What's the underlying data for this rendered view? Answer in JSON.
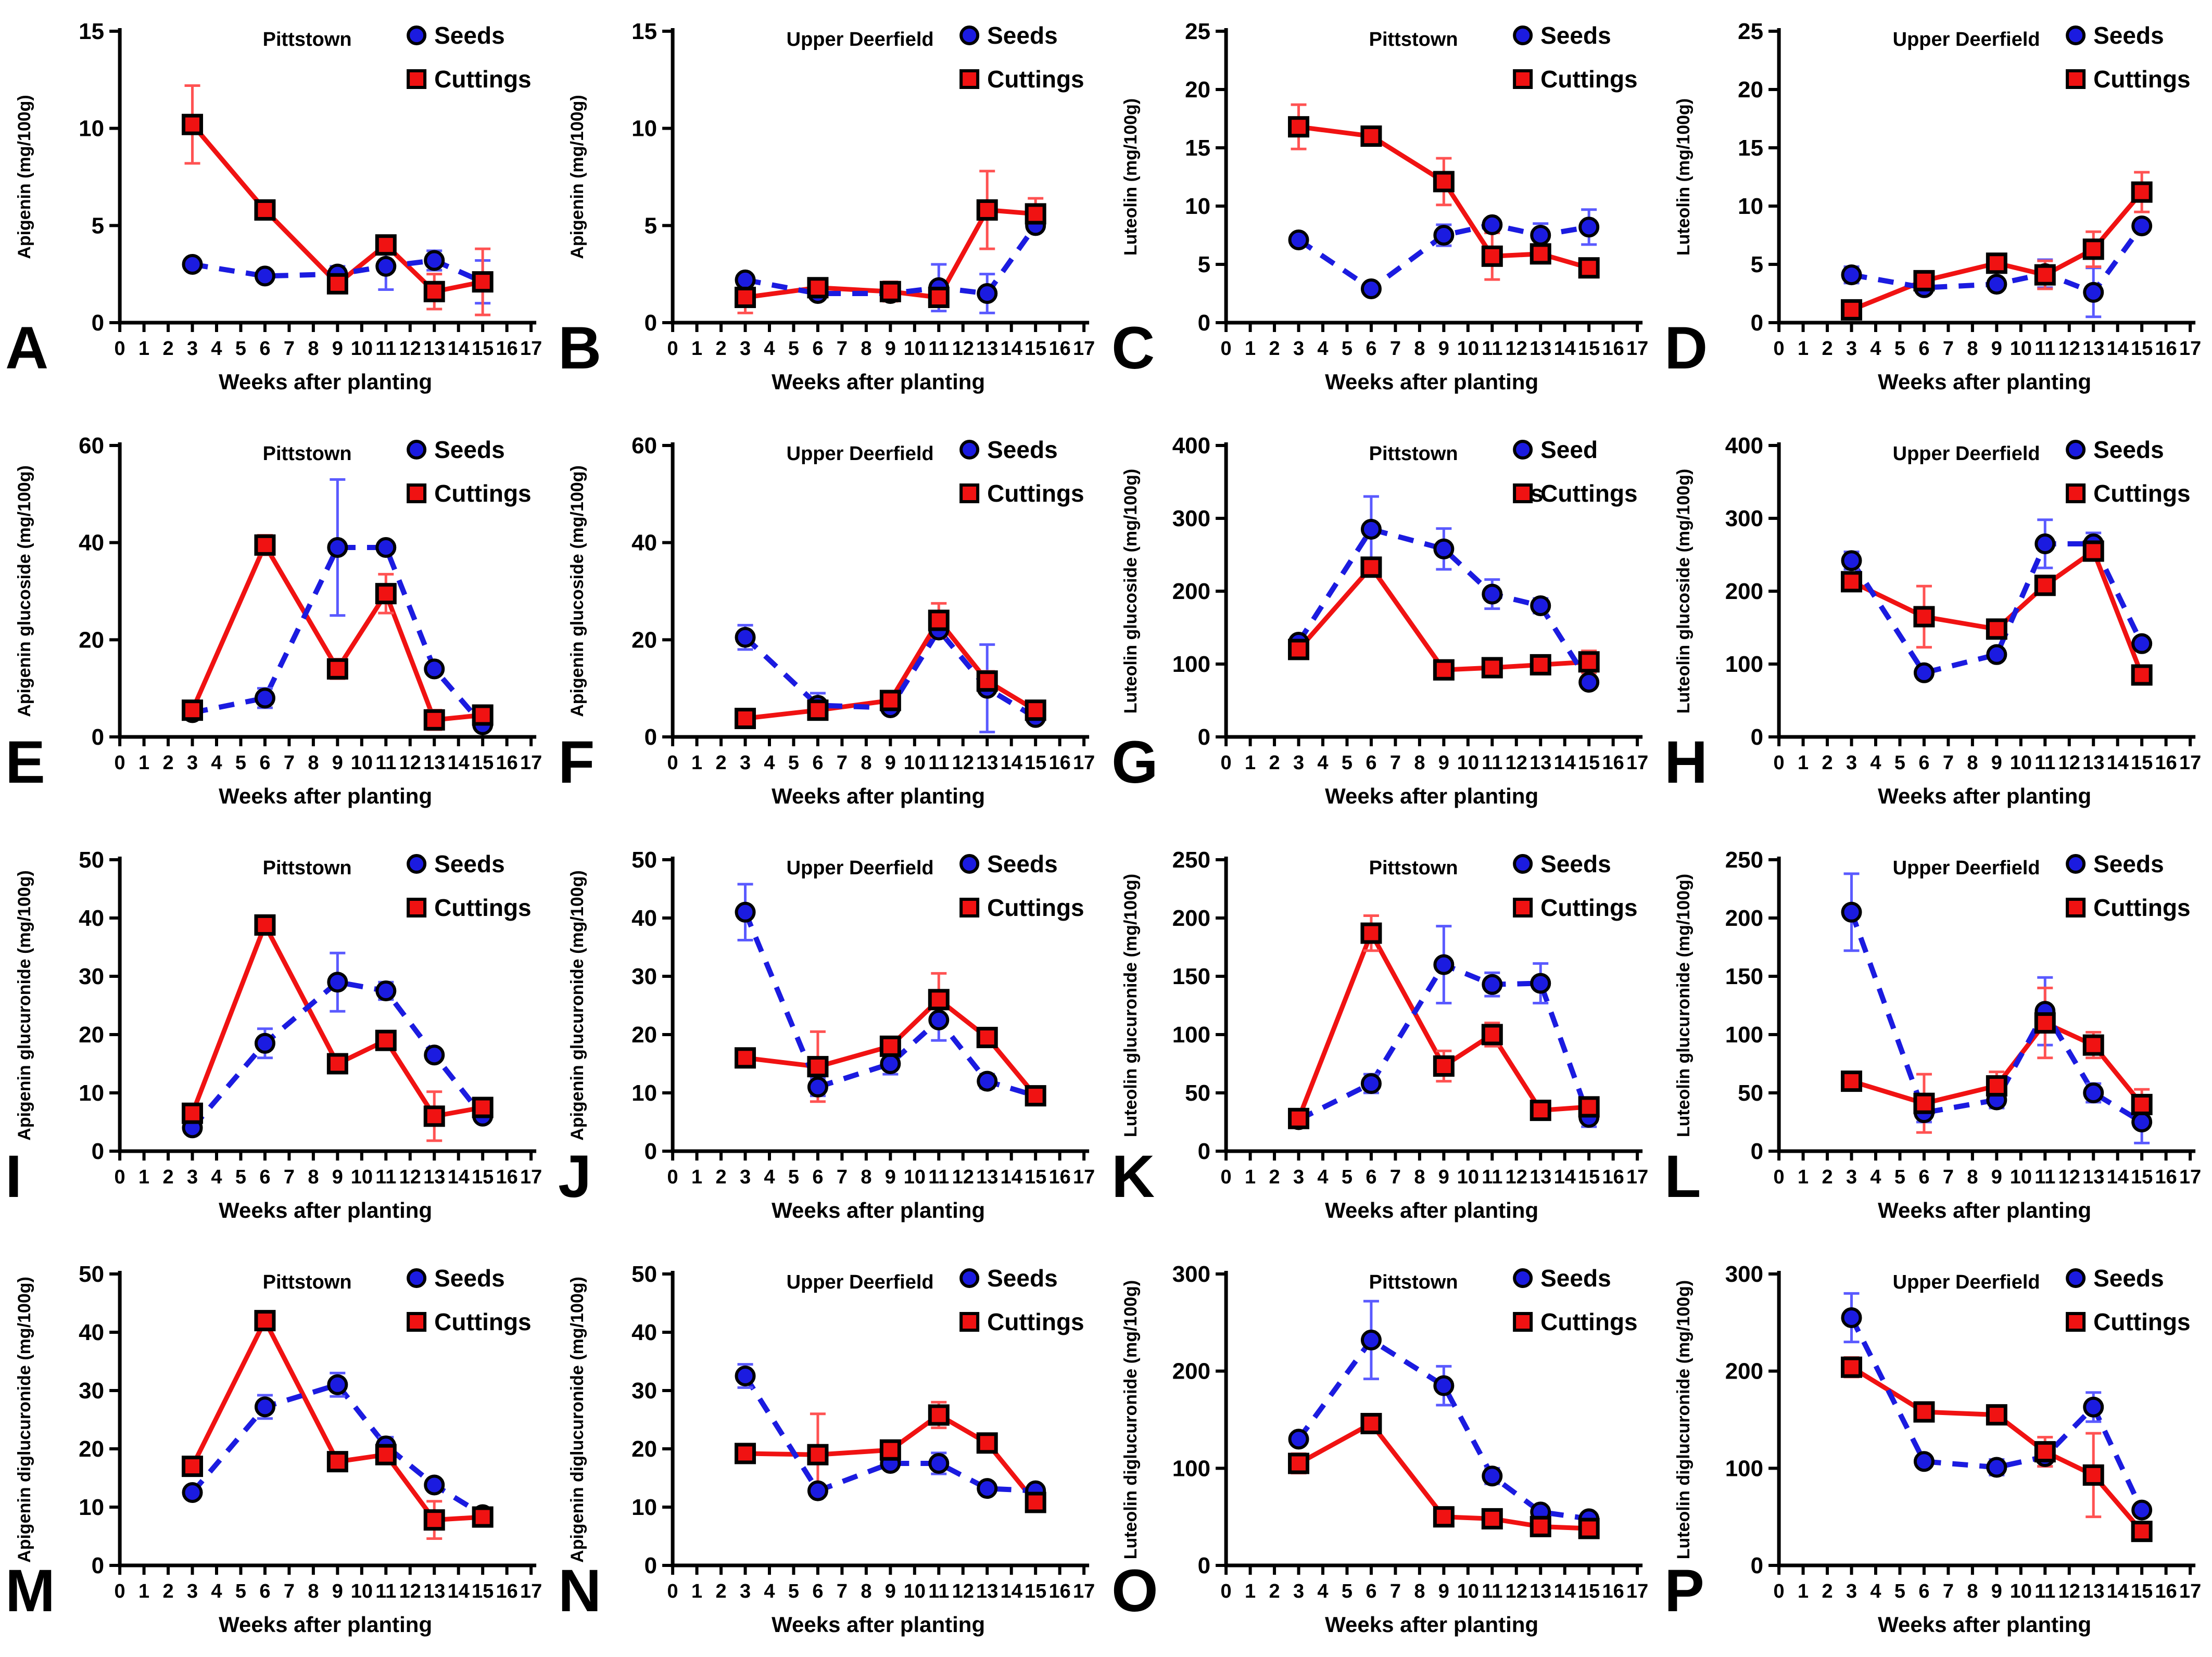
{
  "figure": {
    "xlabel": "Weeks after planting",
    "xlim": [
      0,
      17
    ],
    "x_tick_step": 1,
    "sample_weeks": [
      3,
      6,
      9,
      11,
      13,
      15
    ],
    "legend": {
      "seeds_label": "Seeds",
      "cuttings_label": "Cuttings"
    },
    "colors": {
      "seeds": "#1b1be0",
      "cuttings": "#f01212",
      "seeds_error": "#5a5aff",
      "cuttings_error": "#ff5252",
      "marker_outline": "#000000",
      "axis": "#000000",
      "background": "#ffffff"
    }
  },
  "chart_data": [
    {
      "panel": "A",
      "type": "line",
      "title": "Pittstown",
      "ylabel": "Apigenin (mg/100g)",
      "ylim": [
        0,
        15
      ],
      "yticks": [
        0,
        5,
        10,
        15
      ],
      "x": [
        3,
        6,
        9,
        11,
        13,
        15
      ],
      "series": [
        {
          "name": "Seeds",
          "values": [
            3.0,
            2.4,
            2.5,
            2.9,
            3.2,
            2.1
          ],
          "errors": [
            0.2,
            0.15,
            0.4,
            1.2,
            0.5,
            1.1
          ]
        },
        {
          "name": "Cuttings",
          "values": [
            10.2,
            5.8,
            2.0,
            4.0,
            1.6,
            2.1
          ],
          "errors": [
            2.0,
            0.2,
            0.3,
            0.3,
            0.9,
            1.7
          ]
        }
      ],
      "legend_seeds_lines": [
        "Seeds"
      ]
    },
    {
      "panel": "B",
      "type": "line",
      "title": "Upper Deerfield",
      "ylabel": "Apigenin (mg/100g)",
      "ylim": [
        0,
        15
      ],
      "yticks": [
        0,
        5,
        10,
        15
      ],
      "x": [
        3,
        6,
        9,
        11,
        13,
        15
      ],
      "series": [
        {
          "name": "Seeds",
          "values": [
            2.2,
            1.5,
            1.5,
            1.8,
            1.5,
            5.0
          ],
          "errors": [
            0.2,
            0.15,
            0.2,
            1.2,
            1.0,
            0.3
          ]
        },
        {
          "name": "Cuttings",
          "values": [
            1.3,
            1.8,
            1.6,
            1.3,
            5.8,
            5.6
          ],
          "errors": [
            0.8,
            0.2,
            0.5,
            0.2,
            2.0,
            0.8
          ]
        }
      ],
      "legend_seeds_lines": [
        "Seeds"
      ]
    },
    {
      "panel": "C",
      "type": "line",
      "title": "Pittstown",
      "ylabel": "Luteolin (mg/100g)",
      "ylim": [
        0,
        25
      ],
      "yticks": [
        0,
        5,
        10,
        15,
        20,
        25
      ],
      "x": [
        3,
        6,
        9,
        11,
        13,
        15
      ],
      "series": [
        {
          "name": "Seeds",
          "values": [
            7.1,
            2.9,
            7.5,
            8.4,
            7.5,
            8.2
          ],
          "errors": [
            0.3,
            0.3,
            0.9,
            0.3,
            1.0,
            1.5
          ]
        },
        {
          "name": "Cuttings",
          "values": [
            16.8,
            16.0,
            12.1,
            5.7,
            5.9,
            4.7
          ],
          "errors": [
            1.9,
            0.4,
            2.0,
            2.0,
            0.5,
            0.4
          ]
        }
      ],
      "legend_seeds_lines": [
        "Seeds"
      ]
    },
    {
      "panel": "D",
      "type": "line",
      "title": "Upper Deerfield",
      "ylabel": "Luteolin (mg/100g)",
      "ylim": [
        0,
        25
      ],
      "yticks": [
        0,
        5,
        10,
        15,
        20,
        25
      ],
      "x": [
        3,
        6,
        9,
        11,
        13,
        15
      ],
      "series": [
        {
          "name": "Seeds",
          "values": [
            4.1,
            3.0,
            3.3,
            4.2,
            2.6,
            8.3
          ],
          "errors": [
            0.7,
            0.3,
            0.3,
            1.2,
            2.1,
            0.5
          ]
        },
        {
          "name": "Cuttings",
          "values": [
            1.1,
            3.6,
            5.1,
            4.1,
            6.3,
            11.2
          ],
          "errors": [
            0.3,
            0.3,
            0.7,
            1.2,
            1.5,
            1.7
          ]
        }
      ],
      "legend_seeds_lines": [
        "Seeds"
      ]
    },
    {
      "panel": "E",
      "type": "line",
      "title": "Pittstown",
      "ylabel": "Apigenin glucoside (mg/100g)",
      "ylim": [
        0,
        60
      ],
      "yticks": [
        0,
        20,
        40,
        60
      ],
      "x": [
        3,
        6,
        9,
        11,
        13,
        15
      ],
      "series": [
        {
          "name": "Seeds",
          "values": [
            5.0,
            8.0,
            39.0,
            39.0,
            14.0,
            2.5
          ],
          "errors": [
            1.0,
            2.0,
            14.0,
            1.0,
            1.0,
            0.5
          ]
        },
        {
          "name": "Cuttings",
          "values": [
            5.5,
            39.5,
            14.0,
            29.5,
            3.5,
            4.5
          ],
          "errors": [
            1.5,
            2.0,
            2.0,
            4.0,
            2.0,
            0.5
          ]
        }
      ],
      "legend_seeds_lines": [
        "Seeds"
      ]
    },
    {
      "panel": "F",
      "type": "line",
      "title": "Upper Deerfield",
      "ylabel": "Apigenin glucoside (mg/100g)",
      "ylim": [
        0,
        60
      ],
      "yticks": [
        0,
        20,
        40,
        60
      ],
      "x": [
        3,
        6,
        9,
        11,
        13,
        15
      ],
      "series": [
        {
          "name": "Seeds",
          "values": [
            20.5,
            6.5,
            6.0,
            22.0,
            10.0,
            4.0
          ],
          "errors": [
            2.5,
            2.5,
            0.5,
            1.0,
            9.0,
            0.5
          ]
        },
        {
          "name": "Cuttings",
          "values": [
            3.8,
            5.5,
            7.5,
            24.0,
            11.5,
            5.5
          ],
          "errors": [
            0.5,
            0.5,
            0.5,
            3.5,
            2.0,
            0.5
          ]
        }
      ],
      "legend_seeds_lines": [
        "Seeds"
      ]
    },
    {
      "panel": "G",
      "type": "line",
      "title": "Pittstown",
      "ylabel": "Luteolin glucoside (mg/100g)",
      "ylim": [
        0,
        400
      ],
      "yticks": [
        0,
        100,
        200,
        300,
        400
      ],
      "x": [
        3,
        6,
        9,
        11,
        13,
        15
      ],
      "series": [
        {
          "name": "Seeds",
          "values": [
            130,
            285,
            258,
            196,
            180,
            75
          ],
          "errors": [
            8,
            45,
            28,
            20,
            10,
            5
          ]
        },
        {
          "name": "Cuttings",
          "values": [
            120,
            233,
            92,
            95,
            99,
            103
          ],
          "errors": [
            5,
            5,
            4,
            4,
            4,
            15
          ]
        }
      ],
      "legend_seeds_lines": [
        "Seed",
        "s"
      ]
    },
    {
      "panel": "H",
      "type": "line",
      "title": "Upper Deerfield",
      "ylabel": "Luteolin glucoside (mg/100g)",
      "ylim": [
        0,
        400
      ],
      "yticks": [
        0,
        100,
        200,
        300,
        400
      ],
      "x": [
        3,
        6,
        9,
        11,
        13,
        15
      ],
      "series": [
        {
          "name": "Seeds",
          "values": [
            242,
            88,
            113,
            265,
            265,
            128
          ],
          "errors": [
            12,
            4,
            5,
            33,
            15,
            5
          ]
        },
        {
          "name": "Cuttings",
          "values": [
            213,
            165,
            148,
            208,
            255,
            85
          ],
          "errors": [
            8,
            42,
            6,
            6,
            5,
            4
          ]
        }
      ],
      "legend_seeds_lines": [
        "Seeds"
      ]
    },
    {
      "panel": "I",
      "type": "line",
      "title": "Pittstown",
      "ylabel": "Apigenin glucuronide (mg/100g)",
      "ylim": [
        0,
        50
      ],
      "yticks": [
        0,
        10,
        20,
        30,
        40,
        50
      ],
      "x": [
        3,
        6,
        9,
        11,
        13,
        15
      ],
      "series": [
        {
          "name": "Seeds",
          "values": [
            4.0,
            18.5,
            29.0,
            27.5,
            16.5,
            6.0
          ],
          "errors": [
            1.0,
            2.5,
            5.0,
            1.5,
            0.8,
            0.5
          ]
        },
        {
          "name": "Cuttings",
          "values": [
            6.5,
            38.8,
            15.0,
            19.0,
            6.0,
            7.5
          ],
          "errors": [
            0.8,
            0.8,
            1.0,
            1.0,
            4.2,
            0.5
          ]
        }
      ],
      "legend_seeds_lines": [
        "Seeds"
      ]
    },
    {
      "panel": "J",
      "type": "line",
      "title": "Upper Deerfield",
      "ylabel": "Apigenin glucuronide (mg/100g)",
      "ylim": [
        0,
        50
      ],
      "yticks": [
        0,
        10,
        20,
        30,
        40,
        50
      ],
      "x": [
        3,
        6,
        9,
        11,
        13,
        15
      ],
      "series": [
        {
          "name": "Seeds",
          "values": [
            41.0,
            11.0,
            15.0,
            22.5,
            12.0,
            9.5
          ],
          "errors": [
            4.8,
            1.5,
            1.8,
            3.5,
            1.2,
            0.5
          ]
        },
        {
          "name": "Cuttings",
          "values": [
            16.0,
            14.5,
            18.0,
            26.0,
            19.5,
            9.5
          ],
          "errors": [
            1.0,
            6.0,
            1.5,
            4.5,
            1.5,
            1.5
          ]
        }
      ],
      "legend_seeds_lines": [
        "Seeds"
      ]
    },
    {
      "panel": "K",
      "type": "line",
      "title": "Pittstown",
      "ylabel": "Luteolin glucuronide (mg/100g)",
      "ylim": [
        0,
        250
      ],
      "yticks": [
        0,
        50,
        100,
        150,
        200,
        250
      ],
      "x": [
        3,
        6,
        9,
        11,
        13,
        15
      ],
      "series": [
        {
          "name": "Seeds",
          "values": [
            27,
            58,
            160,
            143,
            144,
            29
          ],
          "errors": [
            5,
            8,
            33,
            10,
            17,
            8
          ]
        },
        {
          "name": "Cuttings",
          "values": [
            28,
            187,
            73,
            100,
            35,
            38
          ],
          "errors": [
            3,
            15,
            13,
            10,
            3,
            5
          ]
        }
      ],
      "legend_seeds_lines": [
        "Seeds"
      ]
    },
    {
      "panel": "L",
      "type": "line",
      "title": "Upper Deerfield",
      "ylabel": "Luteolin glucuronide (mg/100g)",
      "ylim": [
        0,
        250
      ],
      "yticks": [
        0,
        50,
        100,
        150,
        200,
        250
      ],
      "x": [
        3,
        6,
        9,
        11,
        13,
        15
      ],
      "series": [
        {
          "name": "Seeds",
          "values": [
            205,
            33,
            44,
            120,
            50,
            25
          ],
          "errors": [
            33,
            8,
            7,
            29,
            8,
            18
          ]
        },
        {
          "name": "Cuttings",
          "values": [
            60,
            41,
            56,
            110,
            91,
            40
          ],
          "errors": [
            5,
            25,
            12,
            30,
            11,
            13
          ]
        }
      ],
      "legend_seeds_lines": [
        "Seeds"
      ]
    },
    {
      "panel": "M",
      "type": "line",
      "title": "Pittstown",
      "ylabel": "Apigenin diglucuronide (mg/100g)",
      "ylim": [
        0,
        50
      ],
      "yticks": [
        0,
        10,
        20,
        30,
        40,
        50
      ],
      "x": [
        3,
        6,
        9,
        11,
        13,
        15
      ],
      "series": [
        {
          "name": "Seeds",
          "values": [
            12.5,
            27.2,
            31.0,
            20.5,
            13.8,
            8.7
          ],
          "errors": [
            0.8,
            2.0,
            2.0,
            1.5,
            0.7,
            0.5
          ]
        },
        {
          "name": "Cuttings",
          "values": [
            17.0,
            42.0,
            17.8,
            19.0,
            7.8,
            8.3
          ],
          "errors": [
            1.2,
            0.5,
            0.8,
            0.8,
            3.2,
            0.5
          ]
        }
      ],
      "legend_seeds_lines": [
        "Seeds"
      ]
    },
    {
      "panel": "N",
      "type": "line",
      "title": "Upper Deerfield",
      "ylabel": "Apigenin diglucuronide (mg/100g)",
      "ylim": [
        0,
        50
      ],
      "yticks": [
        0,
        10,
        20,
        30,
        40,
        50
      ],
      "x": [
        3,
        6,
        9,
        11,
        13,
        15
      ],
      "series": [
        {
          "name": "Seeds",
          "values": [
            32.5,
            12.8,
            17.5,
            17.5,
            13.2,
            12.8
          ],
          "errors": [
            2.0,
            0.8,
            0.8,
            1.8,
            0.8,
            0.8
          ]
        },
        {
          "name": "Cuttings",
          "values": [
            19.2,
            19.0,
            19.8,
            25.8,
            21.0,
            10.8
          ],
          "errors": [
            0.8,
            7.0,
            0.8,
            2.2,
            0.8,
            0.8
          ]
        }
      ],
      "legend_seeds_lines": [
        "Seeds"
      ]
    },
    {
      "panel": "O",
      "type": "line",
      "title": "Pittstown",
      "ylabel": "Luteolin diglucuronide (mg/100g)",
      "ylim": [
        0,
        300
      ],
      "yticks": [
        0,
        100,
        200,
        300
      ],
      "x": [
        3,
        6,
        9,
        11,
        13,
        15
      ],
      "series": [
        {
          "name": "Seeds",
          "values": [
            130,
            232,
            185,
            92,
            55,
            48
          ],
          "errors": [
            6,
            40,
            20,
            8,
            4,
            4
          ]
        },
        {
          "name": "Cuttings",
          "values": [
            105,
            146,
            50,
            48,
            40,
            38
          ],
          "errors": [
            10,
            5,
            4,
            4,
            4,
            4
          ]
        }
      ],
      "legend_seeds_lines": [
        "Seeds"
      ]
    },
    {
      "panel": "P",
      "type": "line",
      "title": "Upper Deerfield",
      "ylabel": "Luteolin diglucuronide (mg/100g)",
      "ylim": [
        0,
        300
      ],
      "yticks": [
        0,
        100,
        200,
        300
      ],
      "x": [
        3,
        6,
        9,
        11,
        13,
        15
      ],
      "series": [
        {
          "name": "Seeds",
          "values": [
            255,
            107,
            101,
            112,
            163,
            57
          ],
          "errors": [
            25,
            4,
            8,
            10,
            15,
            4
          ]
        },
        {
          "name": "Cuttings",
          "values": [
            204,
            158,
            155,
            117,
            93,
            35
          ],
          "errors": [
            10,
            8,
            5,
            15,
            43,
            4
          ]
        }
      ],
      "legend_seeds_lines": [
        "Seeds"
      ]
    }
  ]
}
